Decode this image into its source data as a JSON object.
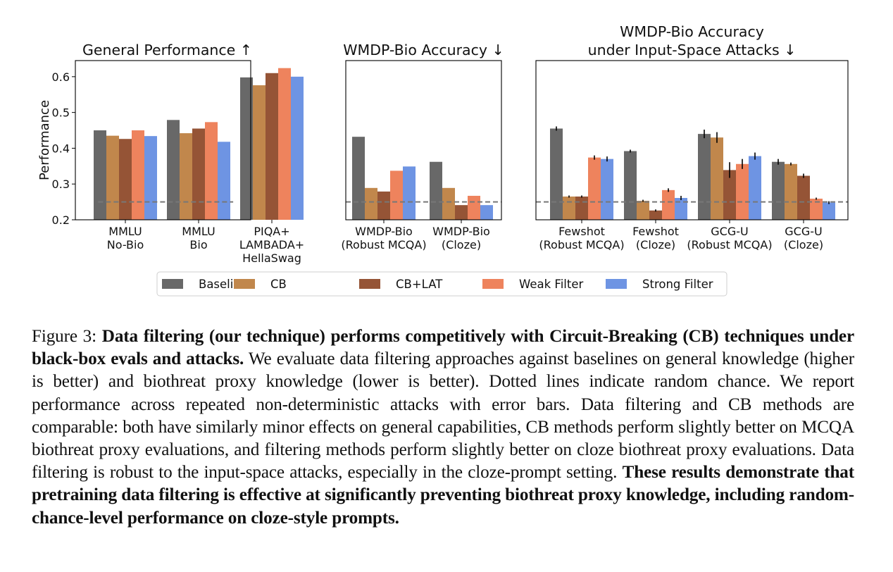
{
  "chart_data": [
    {
      "type": "bar",
      "title": "General Performance ↑",
      "ylabel": "Performance",
      "xlabel": "",
      "ylim": [
        0.2,
        0.645
      ],
      "yticks": [
        0.2,
        0.3,
        0.4,
        0.5,
        0.6
      ],
      "random_chance": 0.25,
      "categories": [
        [
          "MMLU",
          "No-Bio"
        ],
        [
          "MMLU",
          "Bio"
        ],
        [
          "PIQA+",
          "LAMBADA+",
          "HellaSwag"
        ]
      ],
      "series": [
        {
          "name": "Baseline",
          "values": [
            0.45,
            0.479,
            0.598
          ]
        },
        {
          "name": "CB",
          "values": [
            0.435,
            0.442,
            0.576
          ]
        },
        {
          "name": "CB+LAT",
          "values": [
            0.426,
            0.455,
            0.61
          ]
        },
        {
          "name": "Weak Filter",
          "values": [
            0.45,
            0.473,
            0.624
          ]
        },
        {
          "name": "Strong Filter",
          "values": [
            0.434,
            0.418,
            0.6
          ]
        }
      ]
    },
    {
      "type": "bar",
      "title": "WMDP-Bio Accuracy ↓",
      "ylabel": "",
      "xlabel": "",
      "ylim": [
        0.2,
        0.645
      ],
      "random_chance": 0.25,
      "categories": [
        [
          "WMDP-Bio",
          "(Robust MCQA)"
        ],
        [
          "WMDP-Bio",
          "(Cloze)"
        ]
      ],
      "series": [
        {
          "name": "Baseline",
          "values": [
            0.432,
            0.362
          ]
        },
        {
          "name": "CB",
          "values": [
            0.289,
            0.289
          ]
        },
        {
          "name": "CB+LAT",
          "values": [
            0.279,
            0.241
          ]
        },
        {
          "name": "Weak Filter",
          "values": [
            0.337,
            0.267
          ]
        },
        {
          "name": "Strong Filter",
          "values": [
            0.349,
            0.241
          ]
        }
      ]
    },
    {
      "type": "bar",
      "title": "WMDP-Bio Accuracy\nunder Input-Space Attacks ↓",
      "ylabel": "",
      "xlabel": "",
      "ylim": [
        0.2,
        0.645
      ],
      "random_chance": 0.25,
      "categories": [
        [
          "Fewshot",
          "(Robust MCQA)"
        ],
        [
          "Fewshot",
          "(Cloze)"
        ],
        [
          "GCG-U",
          "(Robust MCQA)"
        ],
        [
          "GCG-U",
          "(Cloze)"
        ]
      ],
      "series": [
        {
          "name": "Baseline",
          "values": [
            0.455,
            0.392,
            0.44,
            0.362
          ],
          "errors": [
            0.004,
            0.002,
            0.01,
            0.006
          ]
        },
        {
          "name": "CB",
          "values": [
            0.265,
            0.253,
            0.43,
            0.356
          ],
          "errors": [
            0.001,
            0.001,
            0.013,
            0.002
          ]
        },
        {
          "name": "CB+LAT",
          "values": [
            0.265,
            0.226,
            0.339,
            0.323
          ],
          "errors": [
            0.001,
            0.001,
            0.02,
            0.004
          ]
        },
        {
          "name": "Weak Filter",
          "values": [
            0.374,
            0.283,
            0.356,
            0.259
          ],
          "errors": [
            0.004,
            0.003,
            0.012,
            0.001
          ]
        },
        {
          "name": "Strong Filter",
          "values": [
            0.37,
            0.261,
            0.378,
            0.248
          ],
          "errors": [
            0.005,
            0.004,
            0.008,
            0.002
          ]
        }
      ]
    }
  ],
  "legend": {
    "placement": "bottom-center",
    "items": [
      {
        "label": "Baseline",
        "color": "#686868"
      },
      {
        "label": "CB",
        "color": "#C1874C"
      },
      {
        "label": "CB+LAT",
        "color": "#955436"
      },
      {
        "label": "Weak Filter",
        "color": "#EE835D"
      },
      {
        "label": "Strong Filter",
        "color": "#6E94E3"
      }
    ]
  },
  "caption": {
    "figure_label": "Figure 3:",
    "bold_lead": "Data filtering (our technique) performs competitively with Circuit-Breaking (CB) techniques under black-box evals and attacks.",
    "body": "We evaluate data filtering approaches against baselines on general knowledge (higher is better) and biothreat proxy knowledge (lower is better). Dotted lines indicate random chance.  We report performance across repeated non-deterministic attacks with error bars. Data filtering and CB methods are comparable: both have similarly minor effects on general capabilities, CB methods perform slightly better on MCQA biothreat proxy evaluations, and filtering methods perform slightly better on cloze biothreat proxy evaluations. Data filtering is robust to the input-space attacks, especially in the cloze-prompt setting.",
    "bold_tail": "These results demonstrate that pretraining data filtering is effective at significantly preventing biothreat proxy knowledge, including random-chance-level performance on cloze-style prompts."
  }
}
